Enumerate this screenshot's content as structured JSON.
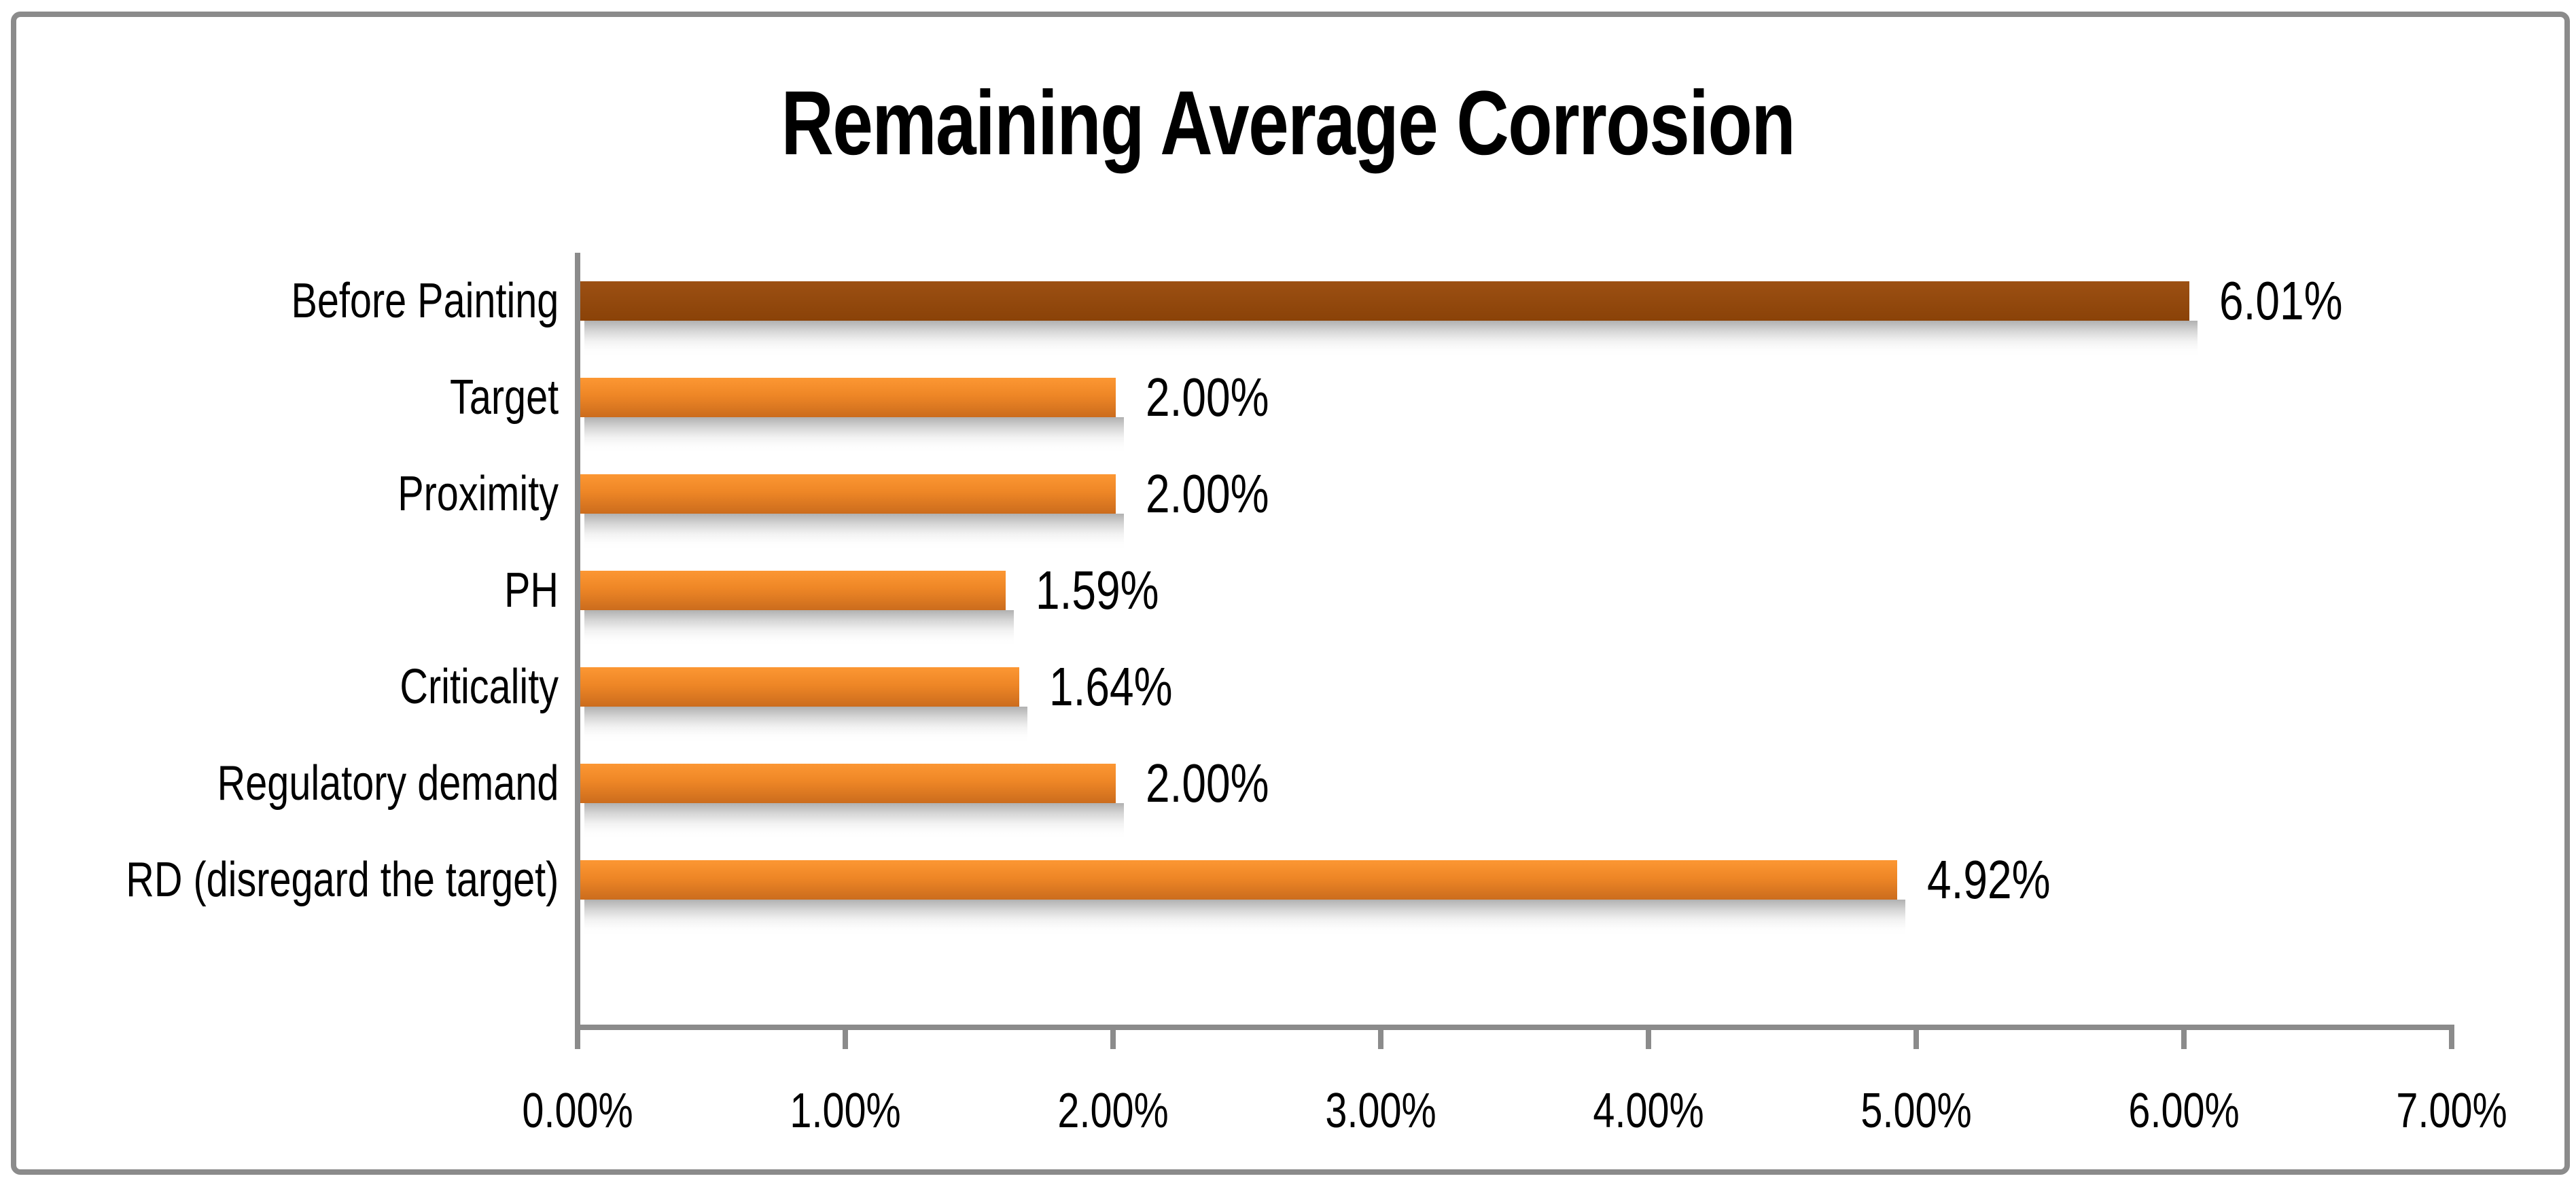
{
  "title": "Remaining Average Corrosion",
  "chart_data": {
    "type": "bar",
    "orientation": "horizontal",
    "title": "Remaining Average Corrosion",
    "categories": [
      "Before Painting",
      "Target",
      "Proximity",
      "PH",
      "Criticality",
      "Regulatory demand",
      "RD (disregard the target)"
    ],
    "values": [
      6.01,
      2.0,
      2.0,
      1.59,
      1.64,
      2.0,
      4.92
    ],
    "data_labels": [
      "6.01%",
      "2.00%",
      "2.00%",
      "1.59%",
      "1.64%",
      "2.00%",
      "4.92%"
    ],
    "highlight_index": 0,
    "xlim": [
      0,
      7
    ],
    "x_ticks": [
      0,
      1,
      2,
      3,
      4,
      5,
      6,
      7
    ],
    "x_tick_labels": [
      "0.00%",
      "1.00%",
      "2.00%",
      "3.00%",
      "4.00%",
      "5.00%",
      "6.00%",
      "7.00%"
    ],
    "grid": false,
    "legend": "none",
    "empty_trailing_bands": 1,
    "colors": {
      "bar_gradient_top": "#FC9733",
      "bar_gradient_mid": "#EE8626",
      "bar_gradient_bottom": "#CB6C1D",
      "highlight_gradient_top": "#9C5013",
      "highlight_gradient_bottom": "#8A4208",
      "axis_line": "#8B8B8B",
      "frame_border": "#8B8B8B",
      "text": "#000000"
    }
  }
}
